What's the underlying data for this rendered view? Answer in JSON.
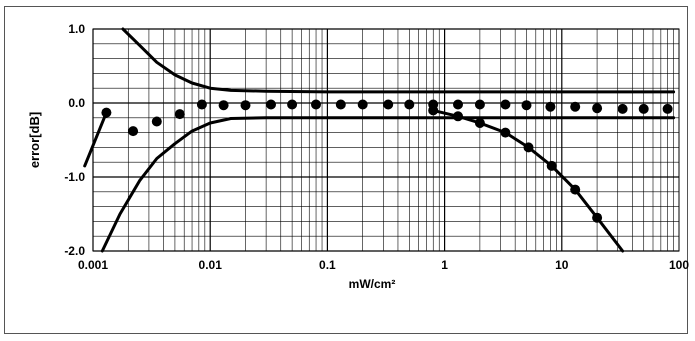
{
  "chart_data": {
    "type": "line",
    "title": "",
    "xlabel": "mW/cm²",
    "ylabel": "error[dB]",
    "xscale": "log",
    "xlim": [
      0.001,
      100
    ],
    "ylim": [
      -2.0,
      1.0
    ],
    "grid": true,
    "legend": "none",
    "x_ticks": [
      0.001,
      0.01,
      0.1,
      1,
      10,
      100
    ],
    "x_tick_labels": [
      "0.001",
      "0.01",
      "0.1",
      "1",
      "10",
      "100"
    ],
    "y_ticks": [
      1.0,
      0.0,
      -1.0,
      -2.0
    ],
    "y_tick_labels": [
      "1.0",
      "0.0",
      "-1.0",
      "-2.0"
    ],
    "series": [
      {
        "style": "markers",
        "x": [
          0.0013,
          0.0022,
          0.0035,
          0.0055,
          0.0085,
          0.013,
          0.02,
          0.033,
          0.05,
          0.08,
          0.13,
          0.2,
          0.33,
          0.5,
          0.8,
          1.3,
          2.0,
          3.3,
          5.0,
          8.0,
          13,
          20,
          33,
          50,
          80
        ],
        "y": [
          -0.13,
          -0.38,
          -0.25,
          -0.15,
          -0.02,
          -0.03,
          -0.03,
          -0.02,
          -0.02,
          -0.02,
          -0.02,
          -0.02,
          -0.02,
          -0.02,
          -0.02,
          -0.02,
          -0.02,
          -0.02,
          -0.03,
          -0.05,
          -0.05,
          -0.07,
          -0.08,
          -0.08,
          -0.08
        ]
      },
      {
        "style": "markers",
        "x": [
          0.8,
          1.3,
          2.0,
          3.3,
          5.2,
          8.2,
          13,
          20
        ],
        "y": [
          -0.1,
          -0.18,
          -0.27,
          -0.4,
          -0.6,
          -0.85,
          -1.17,
          -1.55
        ]
      },
      {
        "style": "line",
        "x": [
          0.0018,
          0.0025,
          0.0035,
          0.005,
          0.007,
          0.01,
          0.015,
          0.03,
          0.1,
          1,
          10,
          90
        ],
        "y": [
          1.0,
          0.78,
          0.55,
          0.38,
          0.27,
          0.2,
          0.17,
          0.16,
          0.15,
          0.15,
          0.15,
          0.15
        ]
      },
      {
        "style": "line",
        "x": [
          0.0012,
          0.0017,
          0.0025,
          0.0035,
          0.005,
          0.007,
          0.01,
          0.015,
          0.03,
          0.1,
          1,
          10,
          90
        ],
        "y": [
          -2.0,
          -1.5,
          -1.05,
          -0.75,
          -0.55,
          -0.38,
          -0.27,
          -0.21,
          -0.2,
          -0.2,
          -0.2,
          -0.2,
          -0.2
        ]
      },
      {
        "style": "line",
        "x": [
          0.8,
          1.3,
          2.0,
          3.3,
          5.2,
          8.2,
          13,
          20,
          33
        ],
        "y": [
          -0.1,
          -0.18,
          -0.27,
          -0.4,
          -0.6,
          -0.85,
          -1.17,
          -1.55,
          -2.0
        ]
      },
      {
        "style": "line",
        "x": [
          0.00085,
          0.0013
        ],
        "y": [
          -0.85,
          -0.13
        ]
      }
    ]
  }
}
